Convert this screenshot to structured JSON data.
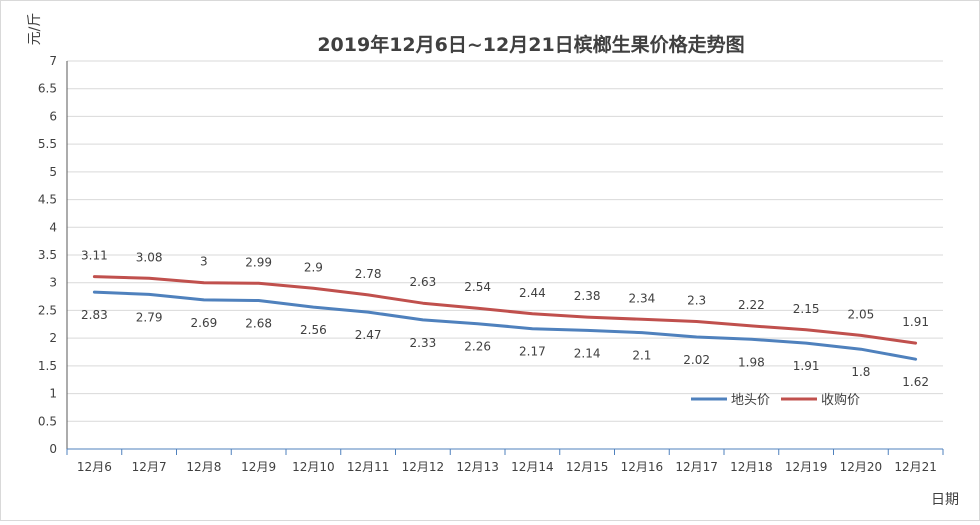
{
  "chart_data": {
    "type": "line",
    "title": "2019年12月6日~12月21日槟榔生果价格走势图",
    "ylabel": "元/斤",
    "xlabel": "日期",
    "categories": [
      "12月6",
      "12月7",
      "12月8",
      "12月9",
      "12月10",
      "12月11",
      "12月12",
      "12月13",
      "12月14",
      "12月15",
      "12月16",
      "12月17",
      "12月18",
      "12月19",
      "12月20",
      "12月21"
    ],
    "ylim": [
      0,
      7
    ],
    "yticks": [
      "0",
      "0.5",
      "1",
      "1.5",
      "2",
      "2.5",
      "3",
      "3.5",
      "4",
      "4.5",
      "5",
      "5.5",
      "6",
      "6.5",
      "7"
    ],
    "grid": true,
    "legend_position": "bottom-right",
    "series": [
      {
        "name": "地头价",
        "color": "#4f81bd",
        "values": [
          2.83,
          2.79,
          2.69,
          2.68,
          2.56,
          2.47,
          2.33,
          2.26,
          2.17,
          2.14,
          2.1,
          2.02,
          1.98,
          1.91,
          1.8,
          1.62
        ],
        "labels": [
          "2.83",
          "2.79",
          "2.69",
          "2.68",
          "2.56",
          "2.47",
          "2.33",
          "2.26",
          "2.17",
          "2.14",
          "2.1",
          "2.02",
          "1.98",
          "1.91",
          "1.8",
          "1.62"
        ]
      },
      {
        "name": "收购价",
        "color": "#c0504d",
        "values": [
          3.11,
          3.08,
          3,
          2.99,
          2.9,
          2.78,
          2.63,
          2.54,
          2.44,
          2.38,
          2.34,
          2.3,
          2.22,
          2.15,
          2.05,
          1.91
        ],
        "labels": [
          "3.11",
          "3.08",
          "3",
          "2.99",
          "2.9",
          "2.78",
          "2.63",
          "2.54",
          "2.44",
          "2.38",
          "2.34",
          "2.3",
          "2.22",
          "2.15",
          "2.05",
          "1.91"
        ]
      }
    ]
  }
}
